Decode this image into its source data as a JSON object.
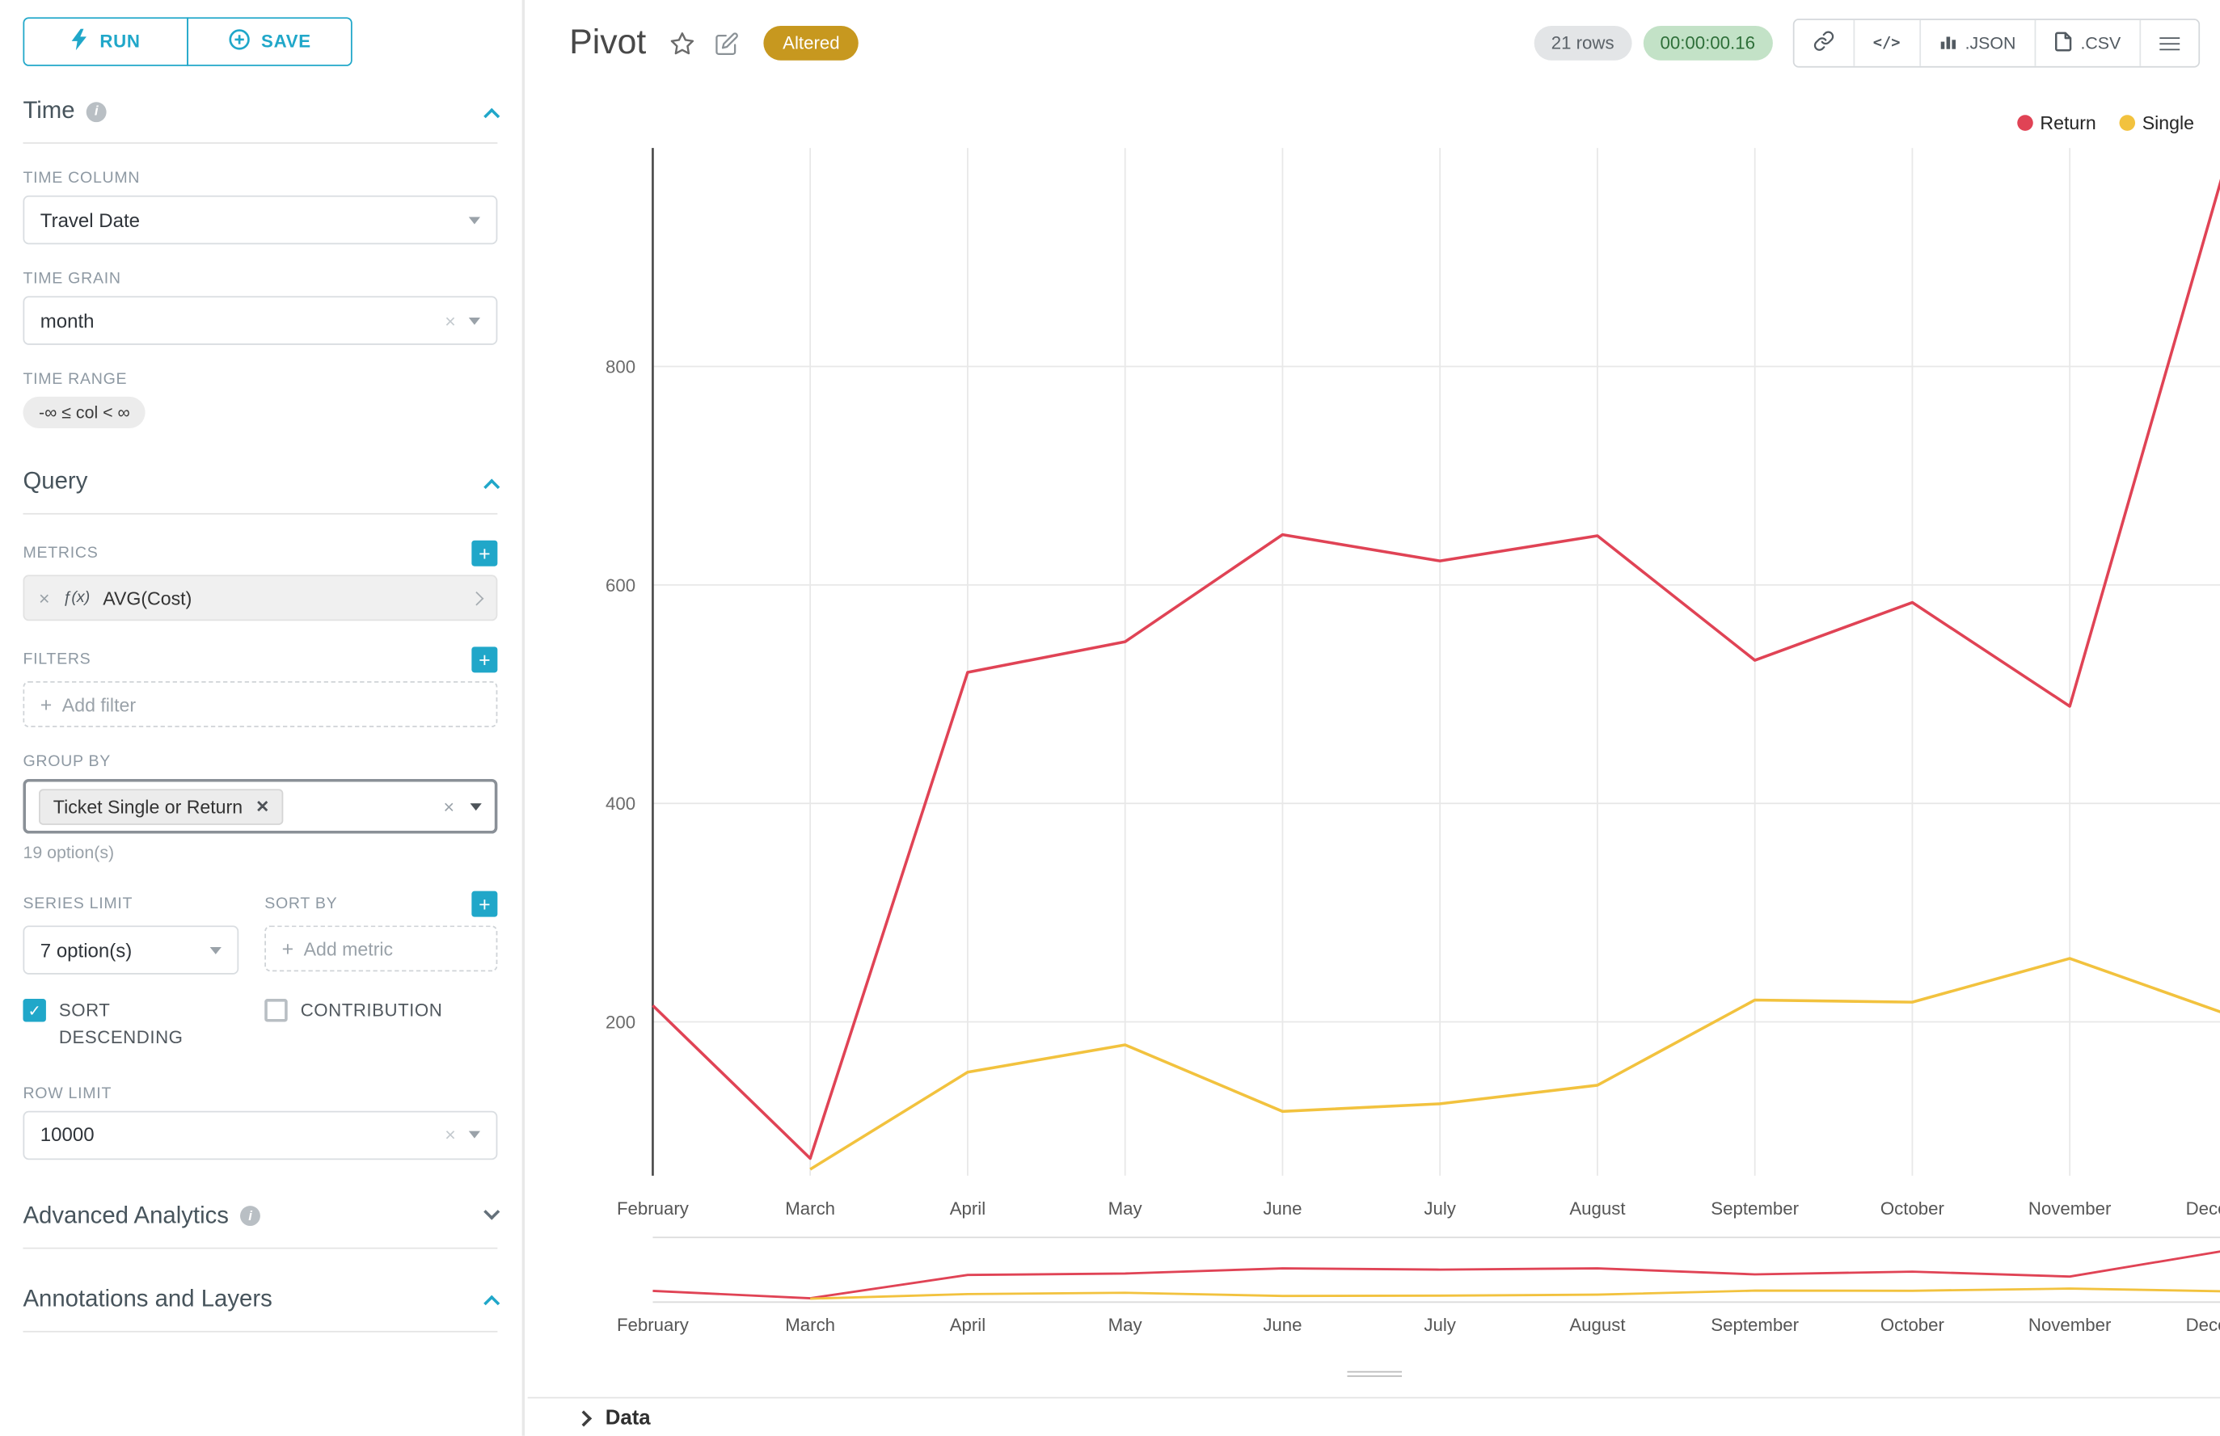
{
  "colors": {
    "accent": "#20a7c9",
    "altered_badge": "#c7981f",
    "timer_bg": "#c3e2c7",
    "timer_text": "#2e6f39",
    "series_return": "#e04355",
    "series_single": "#f2c23e"
  },
  "icons": {
    "fx": "ƒ(x)"
  },
  "toolbar": {
    "run": "RUN",
    "save": "SAVE"
  },
  "sidebar": {
    "time": {
      "title": "Time",
      "time_column_label": "TIME COLUMN",
      "time_column_value": "Travel Date",
      "time_grain_label": "TIME GRAIN",
      "time_grain_value": "month",
      "time_range_label": "TIME RANGE",
      "time_range_value": "-∞ ≤ col < ∞"
    },
    "query": {
      "title": "Query",
      "metrics_label": "METRICS",
      "metric_name": "AVG(Cost)",
      "filters_label": "FILTERS",
      "add_filter": "Add filter",
      "group_by_label": "GROUP BY",
      "group_by_chip": "Ticket Single or Return",
      "group_by_hint": "19 option(s)",
      "series_limit_label": "SERIES LIMIT",
      "series_limit_value": "7 option(s)",
      "sort_by_label": "SORT BY",
      "add_metric": "Add metric",
      "sort_descending_label": "SORT DESCENDING",
      "contribution_label": "CONTRIBUTION",
      "row_limit_label": "ROW LIMIT",
      "row_limit_value": "10000"
    },
    "advanced": {
      "title": "Advanced Analytics"
    },
    "annotations": {
      "title": "Annotations and Layers"
    }
  },
  "header": {
    "title": "Pivot",
    "badge": "Altered",
    "rows": "21 rows",
    "timer": "00:00:00.16",
    "json_label": ".JSON",
    "csv_label": ".CSV"
  },
  "chart_data": {
    "type": "line",
    "title": "",
    "x": [
      "February",
      "March",
      "April",
      "May",
      "June",
      "July",
      "August",
      "September",
      "October",
      "November",
      "December"
    ],
    "series": [
      {
        "name": "Return",
        "color": "#e04355",
        "values": [
          215,
          75,
          520,
          548,
          646,
          622,
          645,
          531,
          584,
          489,
          990
        ]
      },
      {
        "name": "Single",
        "color": "#f2c23e",
        "values": [
          null,
          65,
          154,
          179,
          118,
          125,
          142,
          220,
          218,
          258,
          207
        ]
      }
    ],
    "ylim": [
      0,
      1000
    ],
    "yticks": [
      200,
      400,
      600,
      800
    ],
    "grid": true,
    "legend_position": "top-right",
    "has_minimap": true
  },
  "footer": {
    "data_label": "Data"
  }
}
